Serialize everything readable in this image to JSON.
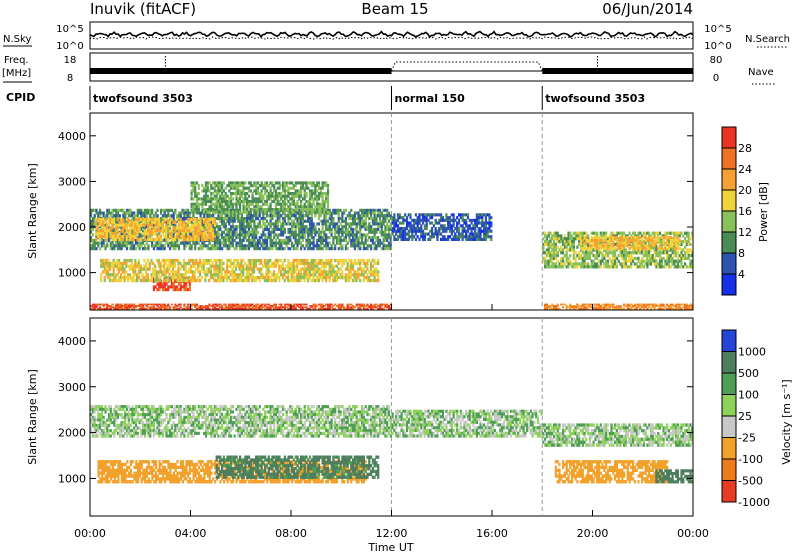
{
  "header": {
    "station": "Inuvik (fitACF)",
    "beam": "Beam 15",
    "date": "06/Jun/2014"
  },
  "left_labels": {
    "nsky": "N.Sky",
    "freq": "Freq.",
    "freq_unit": "[MHz]",
    "cpid": "CPID"
  },
  "right_labels": {
    "nsearch": "N.Search",
    "nave": "Nave"
  },
  "noise_axis": {
    "left_ticks": [
      "10^5",
      "10^0"
    ],
    "right_ticks": [
      "10^5",
      "10^0"
    ]
  },
  "freq_axis": {
    "left_ticks": [
      "18",
      "8"
    ],
    "right_ticks": [
      "80",
      "0"
    ]
  },
  "cpid_segments": [
    {
      "label": "twofsound 3503",
      "start_h": 0,
      "end_h": 12
    },
    {
      "label": "normal 150",
      "start_h": 12,
      "end_h": 18
    },
    {
      "label": "twofsound 3503",
      "start_h": 18,
      "end_h": 24
    }
  ],
  "x_axis": {
    "label": "Time UT",
    "ticks": [
      "00:00",
      "04:00",
      "08:00",
      "12:00",
      "16:00",
      "20:00",
      "00:00"
    ]
  },
  "chart_data": [
    {
      "type": "heatmap",
      "panel": "power",
      "xlabel": "Time UT",
      "ylabel": "Slant Range [km]",
      "yticks": [
        "1000",
        "2000",
        "3000",
        "4000"
      ],
      "xlim_hours": [
        0,
        24
      ],
      "ylim_km": [
        180,
        4500
      ],
      "colorbar": {
        "label": "Power [dB]",
        "ticks": [
          "4",
          "8",
          "12",
          "16",
          "20",
          "24",
          "28"
        ],
        "colors": [
          "#1530e6",
          "#2d55b0",
          "#4a8c55",
          "#88c05a",
          "#f0d23a",
          "#f5a232",
          "#ee7221",
          "#ec3424"
        ]
      },
      "regions": [
        {
          "t": [
            0.0,
            12.0
          ],
          "r": [
            1500,
            2400
          ],
          "value": 10
        },
        {
          "t": [
            0.2,
            5.0
          ],
          "r": [
            1700,
            2200
          ],
          "value": 20
        },
        {
          "t": [
            4.0,
            9.5
          ],
          "r": [
            2300,
            3000
          ],
          "value": 12
        },
        {
          "t": [
            0.0,
            12.0
          ],
          "r": [
            200,
            320
          ],
          "value": 28
        },
        {
          "t": [
            2.5,
            4.0
          ],
          "r": [
            600,
            900
          ],
          "value": 30
        },
        {
          "t": [
            0.4,
            11.5
          ],
          "r": [
            800,
            1300
          ],
          "value": 18
        },
        {
          "t": [
            12.0,
            16.0
          ],
          "r": [
            1700,
            2300
          ],
          "value": 6
        },
        {
          "t": [
            18.0,
            24.0
          ],
          "r": [
            1100,
            1900
          ],
          "value": 14
        },
        {
          "t": [
            19.5,
            23.5
          ],
          "r": [
            1500,
            1800
          ],
          "value": 20
        },
        {
          "t": [
            18.0,
            24.0
          ],
          "r": [
            200,
            320
          ],
          "value": 24
        }
      ]
    },
    {
      "type": "heatmap",
      "panel": "velocity",
      "xlabel": "Time UT",
      "ylabel": "Slant Range [km]",
      "yticks": [
        "1000",
        "2000",
        "3000",
        "4000"
      ],
      "xlim_hours": [
        0,
        24
      ],
      "ylim_km": [
        180,
        4500
      ],
      "colorbar": {
        "label": "Velocity [m s⁻¹]",
        "ticks": [
          "1000",
          "500",
          "100",
          "25",
          "-25",
          "-100",
          "-500",
          "-1000"
        ],
        "colors": [
          "#2245d6",
          "#4e7e5e",
          "#4f9e56",
          "#8dd25a",
          "#c8c8c8",
          "#f2a12b",
          "#ee7a1e",
          "#e83b23"
        ]
      },
      "regions": [
        {
          "t": [
            0.0,
            12.0
          ],
          "r": [
            1900,
            2600
          ],
          "value": 0
        },
        {
          "t": [
            12.0,
            18.0
          ],
          "r": [
            1900,
            2500
          ],
          "value": 0
        },
        {
          "t": [
            18.0,
            24.0
          ],
          "r": [
            1700,
            2200
          ],
          "value": 0
        },
        {
          "t": [
            0.3,
            11.0
          ],
          "r": [
            900,
            1400
          ],
          "value": -300
        },
        {
          "t": [
            5.0,
            11.5
          ],
          "r": [
            1000,
            1500
          ],
          "value": 150
        },
        {
          "t": [
            18.5,
            23.0
          ],
          "r": [
            900,
            1400
          ],
          "value": -300
        },
        {
          "t": [
            22.5,
            24.0
          ],
          "r": [
            900,
            1200
          ],
          "value": 300
        }
      ]
    }
  ]
}
